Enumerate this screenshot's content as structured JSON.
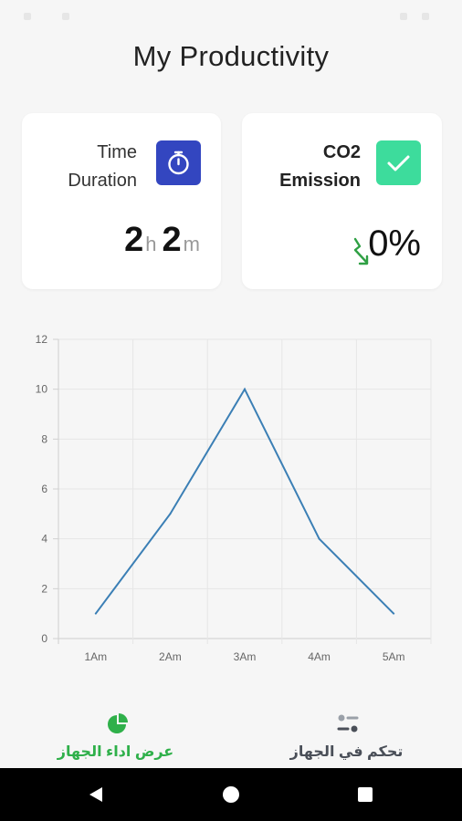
{
  "app": {
    "title": "My Productivity"
  },
  "cards": {
    "time_duration": {
      "label_line1": "Time",
      "label_line2": "Duration",
      "icon": "stopwatch-icon",
      "hours": "2",
      "hours_unit": "h",
      "minutes": "2",
      "minutes_unit": "m"
    },
    "co2": {
      "label_line1": "CO2",
      "label_line2": "Emission",
      "icon": "checkmark-icon",
      "trend_icon": "trend-down-arrow-icon",
      "value": "0%"
    }
  },
  "chart_data": {
    "type": "line",
    "categories": [
      "1Am",
      "2Am",
      "3Am",
      "4Am",
      "5Am"
    ],
    "series": [
      {
        "values": [
          1,
          5,
          10,
          4,
          1
        ]
      }
    ],
    "yticks": [
      "0",
      "2",
      "4",
      "6",
      "8",
      "10",
      "12"
    ],
    "ylim": [
      0,
      12
    ],
    "grid": true,
    "line_color": "#3b7fb5"
  },
  "bottom_nav": {
    "items": [
      {
        "label": "عرض اداء الجهاز",
        "icon": "pie-chart-icon",
        "active": true
      },
      {
        "label": "تحكم في الجهاز",
        "icon": "sliders-icon",
        "active": false
      }
    ]
  },
  "colors": {
    "accent_green": "#2fb04a",
    "icon_blue": "#3346c0",
    "icon_green": "#3ddc9c"
  }
}
